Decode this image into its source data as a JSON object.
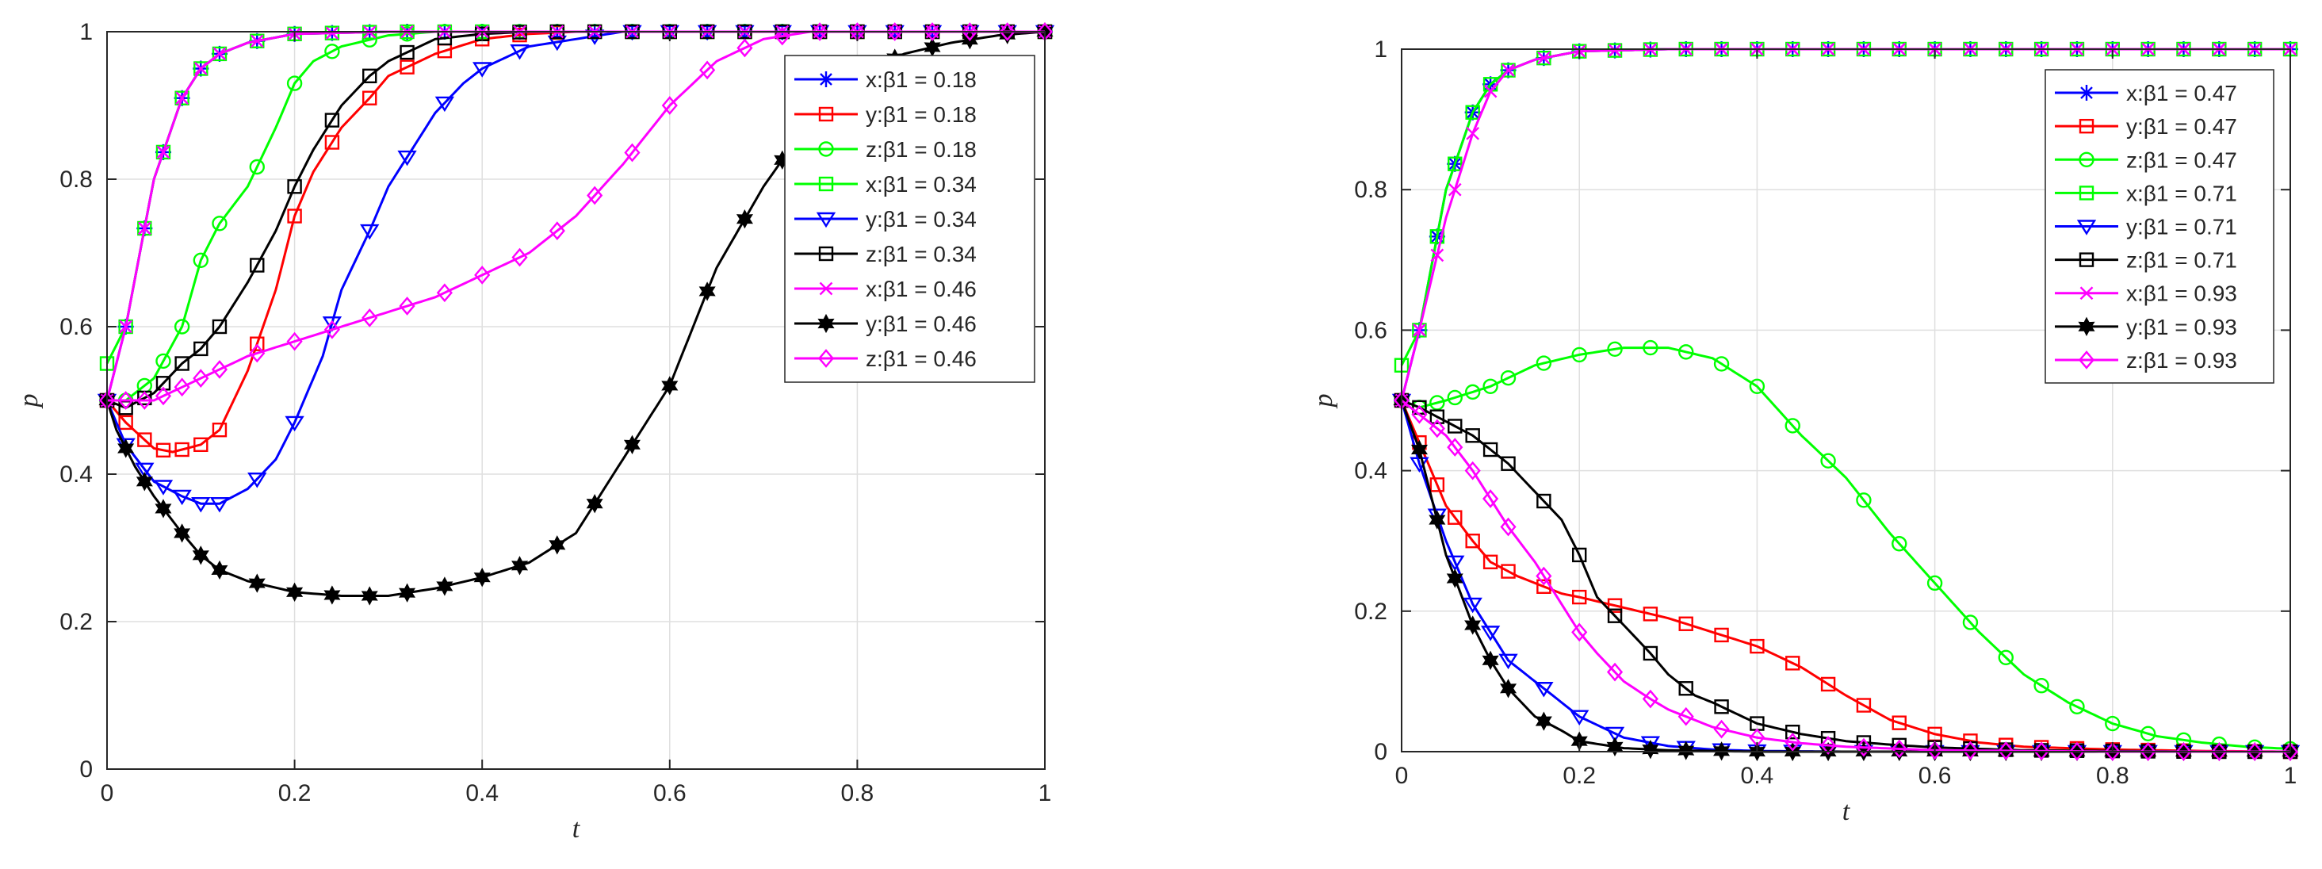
{
  "chart_data": [
    {
      "type": "line",
      "title": "",
      "xlabel": "t",
      "ylabel": "p",
      "xlim": [
        0,
        1
      ],
      "ylim": [
        0,
        1
      ],
      "xticks": [
        0,
        0.2,
        0.4,
        0.6,
        0.8,
        1
      ],
      "yticks": [
        0,
        0.2,
        0.4,
        0.6,
        0.8,
        1
      ],
      "xtick_labels": [
        "0",
        "0.2",
        "0.4",
        "0.6",
        "0.8",
        "1"
      ],
      "ytick_labels": [
        "0",
        "0.2",
        "0.4",
        "0.6",
        "0.8",
        "1"
      ],
      "grid": true,
      "legend_position": "top-right",
      "series": [
        {
          "name": "x:β1 = 0.18",
          "color": "#0000ff",
          "marker": "asterisk",
          "x": [
            0,
            0.02,
            0.05,
            0.08,
            0.1,
            0.12,
            0.15,
            0.2,
            0.3,
            1
          ],
          "y": [
            0.5,
            0.6,
            0.8,
            0.91,
            0.95,
            0.97,
            0.985,
            0.997,
            1,
            1
          ]
        },
        {
          "name": "y:β1 = 0.18",
          "color": "#ff0000",
          "marker": "square",
          "x": [
            0,
            0.02,
            0.05,
            0.07,
            0.1,
            0.12,
            0.15,
            0.18,
            0.2,
            0.22,
            0.25,
            0.28,
            0.3,
            0.35,
            0.4,
            0.45,
            0.5,
            1
          ],
          "y": [
            0.5,
            0.47,
            0.435,
            0.43,
            0.44,
            0.46,
            0.54,
            0.65,
            0.75,
            0.81,
            0.87,
            0.91,
            0.94,
            0.97,
            0.99,
            0.997,
            1,
            1
          ]
        },
        {
          "name": "z:β1 = 0.18",
          "color": "#00ff00",
          "marker": "circle",
          "x": [
            0,
            0.02,
            0.05,
            0.08,
            0.1,
            0.12,
            0.15,
            0.18,
            0.2,
            0.22,
            0.25,
            0.3,
            0.35,
            0.4,
            1
          ],
          "y": [
            0.5,
            0.5,
            0.53,
            0.6,
            0.69,
            0.74,
            0.79,
            0.87,
            0.93,
            0.96,
            0.98,
            0.995,
            1,
            1,
            1
          ]
        },
        {
          "name": "x:β1 = 0.34",
          "color": "#00ff00",
          "marker": "square",
          "x": [
            0,
            0.02,
            0.05,
            0.08,
            0.1,
            0.12,
            0.15,
            0.2,
            0.3,
            1
          ],
          "y": [
            0.55,
            0.6,
            0.8,
            0.91,
            0.95,
            0.97,
            0.985,
            0.997,
            1,
            1
          ]
        },
        {
          "name": "y:β1 = 0.34",
          "color": "#0000ff",
          "marker": "triangle-down",
          "x": [
            0,
            0.02,
            0.05,
            0.08,
            0.1,
            0.12,
            0.15,
            0.18,
            0.2,
            0.23,
            0.25,
            0.28,
            0.3,
            0.33,
            0.35,
            0.38,
            0.4,
            0.45,
            0.5,
            0.55,
            0.6,
            0.7,
            1
          ],
          "y": [
            0.5,
            0.44,
            0.39,
            0.37,
            0.36,
            0.36,
            0.38,
            0.42,
            0.47,
            0.56,
            0.65,
            0.73,
            0.79,
            0.85,
            0.89,
            0.93,
            0.95,
            0.98,
            0.99,
            1,
            1,
            1,
            1
          ]
        },
        {
          "name": "z:β1 = 0.34",
          "color": "#000000",
          "marker": "square",
          "x": [
            0,
            0.02,
            0.05,
            0.08,
            0.1,
            0.12,
            0.15,
            0.18,
            0.2,
            0.22,
            0.25,
            0.28,
            0.3,
            0.35,
            0.4,
            0.45,
            0.5,
            1
          ],
          "y": [
            0.5,
            0.49,
            0.51,
            0.55,
            0.57,
            0.6,
            0.66,
            0.73,
            0.79,
            0.84,
            0.9,
            0.94,
            0.96,
            0.99,
            0.997,
            1,
            1,
            1
          ]
        },
        {
          "name": "x:β1 = 0.46",
          "color": "#ff00ff",
          "marker": "x",
          "x": [
            0,
            0.02,
            0.05,
            0.08,
            0.1,
            0.12,
            0.15,
            0.2,
            0.3,
            1
          ],
          "y": [
            0.5,
            0.6,
            0.8,
            0.91,
            0.95,
            0.97,
            0.985,
            0.997,
            1,
            1
          ]
        },
        {
          "name": "y:β1 = 0.46",
          "color": "#000000",
          "marker": "hexagram",
          "x": [
            0,
            0.01,
            0.03,
            0.05,
            0.08,
            0.1,
            0.12,
            0.15,
            0.2,
            0.25,
            0.3,
            0.35,
            0.4,
            0.45,
            0.5,
            0.55,
            0.6,
            0.65,
            0.7,
            0.75,
            0.8,
            0.85,
            0.9,
            0.95,
            1
          ],
          "y": [
            0.5,
            0.46,
            0.41,
            0.37,
            0.32,
            0.29,
            0.27,
            0.255,
            0.24,
            0.235,
            0.235,
            0.245,
            0.26,
            0.28,
            0.32,
            0.42,
            0.52,
            0.68,
            0.79,
            0.88,
            0.94,
            0.97,
            0.985,
            0.995,
            1
          ]
        },
        {
          "name": "z:β1 = 0.46",
          "color": "#ff00ff",
          "marker": "diamond",
          "x": [
            0,
            0.02,
            0.05,
            0.1,
            0.15,
            0.2,
            0.25,
            0.3,
            0.35,
            0.4,
            0.45,
            0.5,
            0.55,
            0.6,
            0.65,
            0.7,
            0.75,
            0.8,
            0.9,
            1
          ],
          "y": [
            0.5,
            0.5,
            0.5,
            0.53,
            0.56,
            0.58,
            0.6,
            0.62,
            0.64,
            0.67,
            0.7,
            0.75,
            0.82,
            0.9,
            0.96,
            0.99,
            1,
            1,
            1,
            1
          ]
        }
      ]
    },
    {
      "type": "line",
      "title": "",
      "xlabel": "t",
      "ylabel": "p",
      "xlim": [
        0,
        1
      ],
      "ylim": [
        0,
        1
      ],
      "xticks": [
        0,
        0.2,
        0.4,
        0.6,
        0.8,
        1
      ],
      "yticks": [
        0,
        0.2,
        0.4,
        0.6,
        0.8,
        1
      ],
      "xtick_labels": [
        "0",
        "0.2",
        "0.4",
        "0.6",
        "0.8",
        "1"
      ],
      "ytick_labels": [
        "0",
        "0.2",
        "0.4",
        "0.6",
        "0.8",
        "1"
      ],
      "grid": true,
      "legend_position": "top-right",
      "series": [
        {
          "name": "x:β1 = 0.47",
          "color": "#0000ff",
          "marker": "asterisk",
          "x": [
            0,
            0.02,
            0.05,
            0.08,
            0.1,
            0.12,
            0.15,
            0.2,
            0.3,
            1
          ],
          "y": [
            0.5,
            0.6,
            0.8,
            0.91,
            0.95,
            0.97,
            0.985,
            0.997,
            1,
            1
          ]
        },
        {
          "name": "y:β1 = 0.47",
          "color": "#ff0000",
          "marker": "square",
          "x": [
            0,
            0.02,
            0.05,
            0.08,
            0.1,
            0.13,
            0.15,
            0.18,
            0.2,
            0.25,
            0.3,
            0.35,
            0.4,
            0.45,
            0.5,
            0.55,
            0.6,
            0.65,
            0.7,
            0.8,
            0.9,
            1
          ],
          "y": [
            0.5,
            0.44,
            0.35,
            0.3,
            0.27,
            0.25,
            0.24,
            0.225,
            0.22,
            0.205,
            0.19,
            0.17,
            0.15,
            0.12,
            0.08,
            0.045,
            0.025,
            0.013,
            0.007,
            0.003,
            0.001,
            0
          ]
        },
        {
          "name": "z:β1 = 0.47",
          "color": "#00ff00",
          "marker": "circle",
          "x": [
            0,
            0.02,
            0.05,
            0.1,
            0.15,
            0.2,
            0.25,
            0.3,
            0.35,
            0.4,
            0.45,
            0.5,
            0.55,
            0.6,
            0.65,
            0.7,
            0.75,
            0.8,
            0.85,
            0.9,
            0.95,
            1
          ],
          "y": [
            0.5,
            0.49,
            0.5,
            0.52,
            0.55,
            0.565,
            0.575,
            0.575,
            0.56,
            0.52,
            0.45,
            0.39,
            0.31,
            0.24,
            0.17,
            0.11,
            0.07,
            0.04,
            0.022,
            0.013,
            0.007,
            0.004
          ]
        },
        {
          "name": "x:β1 = 0.71",
          "color": "#00ff00",
          "marker": "square",
          "x": [
            0,
            0.02,
            0.05,
            0.08,
            0.1,
            0.12,
            0.15,
            0.2,
            0.3,
            1
          ],
          "y": [
            0.55,
            0.6,
            0.8,
            0.91,
            0.95,
            0.97,
            0.985,
            0.997,
            1,
            1
          ]
        },
        {
          "name": "y:β1 = 0.71",
          "color": "#0000ff",
          "marker": "triangle-down",
          "x": [
            0,
            0.02,
            0.05,
            0.08,
            0.1,
            0.12,
            0.15,
            0.18,
            0.2,
            0.25,
            0.3,
            0.35,
            0.4,
            0.5,
            1
          ],
          "y": [
            0.5,
            0.41,
            0.3,
            0.21,
            0.17,
            0.13,
            0.1,
            0.07,
            0.05,
            0.02,
            0.008,
            0.003,
            0.001,
            0,
            0
          ]
        },
        {
          "name": "z:β1 = 0.71",
          "color": "#000000",
          "marker": "square",
          "x": [
            0,
            0.02,
            0.05,
            0.08,
            0.1,
            0.12,
            0.15,
            0.18,
            0.2,
            0.22,
            0.25,
            0.28,
            0.3,
            0.33,
            0.35,
            0.4,
            0.45,
            0.5,
            0.55,
            0.6,
            0.7,
            0.8,
            0.9,
            1
          ],
          "y": [
            0.5,
            0.49,
            0.47,
            0.45,
            0.43,
            0.41,
            0.37,
            0.33,
            0.28,
            0.22,
            0.18,
            0.14,
            0.11,
            0.08,
            0.07,
            0.04,
            0.025,
            0.015,
            0.01,
            0.006,
            0.002,
            0.001,
            0,
            0
          ]
        },
        {
          "name": "x:β1 = 0.93",
          "color": "#ff00ff",
          "marker": "x",
          "x": [
            0,
            0.02,
            0.05,
            0.08,
            0.1,
            0.12,
            0.15,
            0.2,
            0.3,
            1
          ],
          "y": [
            0.5,
            0.6,
            0.76,
            0.88,
            0.94,
            0.97,
            0.985,
            0.997,
            1,
            1
          ]
        },
        {
          "name": "y:β1 = 0.93",
          "color": "#000000",
          "marker": "hexagram",
          "x": [
            0,
            0.02,
            0.05,
            0.08,
            0.1,
            0.12,
            0.15,
            0.18,
            0.2,
            0.25,
            0.3,
            0.4,
            0.5,
            1
          ],
          "y": [
            0.5,
            0.43,
            0.28,
            0.18,
            0.13,
            0.09,
            0.05,
            0.03,
            0.015,
            0.005,
            0.002,
            0,
            0,
            0
          ]
        },
        {
          "name": "z:β1 = 0.93",
          "color": "#ff00ff",
          "marker": "diamond",
          "x": [
            0,
            0.02,
            0.05,
            0.08,
            0.1,
            0.12,
            0.15,
            0.18,
            0.2,
            0.22,
            0.25,
            0.28,
            0.3,
            0.35,
            0.4,
            0.45,
            0.5,
            0.6,
            0.7,
            0.8,
            1
          ],
          "y": [
            0.5,
            0.48,
            0.45,
            0.4,
            0.36,
            0.32,
            0.27,
            0.21,
            0.17,
            0.14,
            0.1,
            0.075,
            0.06,
            0.035,
            0.02,
            0.012,
            0.007,
            0.002,
            0.001,
            0,
            0
          ]
        }
      ]
    }
  ]
}
